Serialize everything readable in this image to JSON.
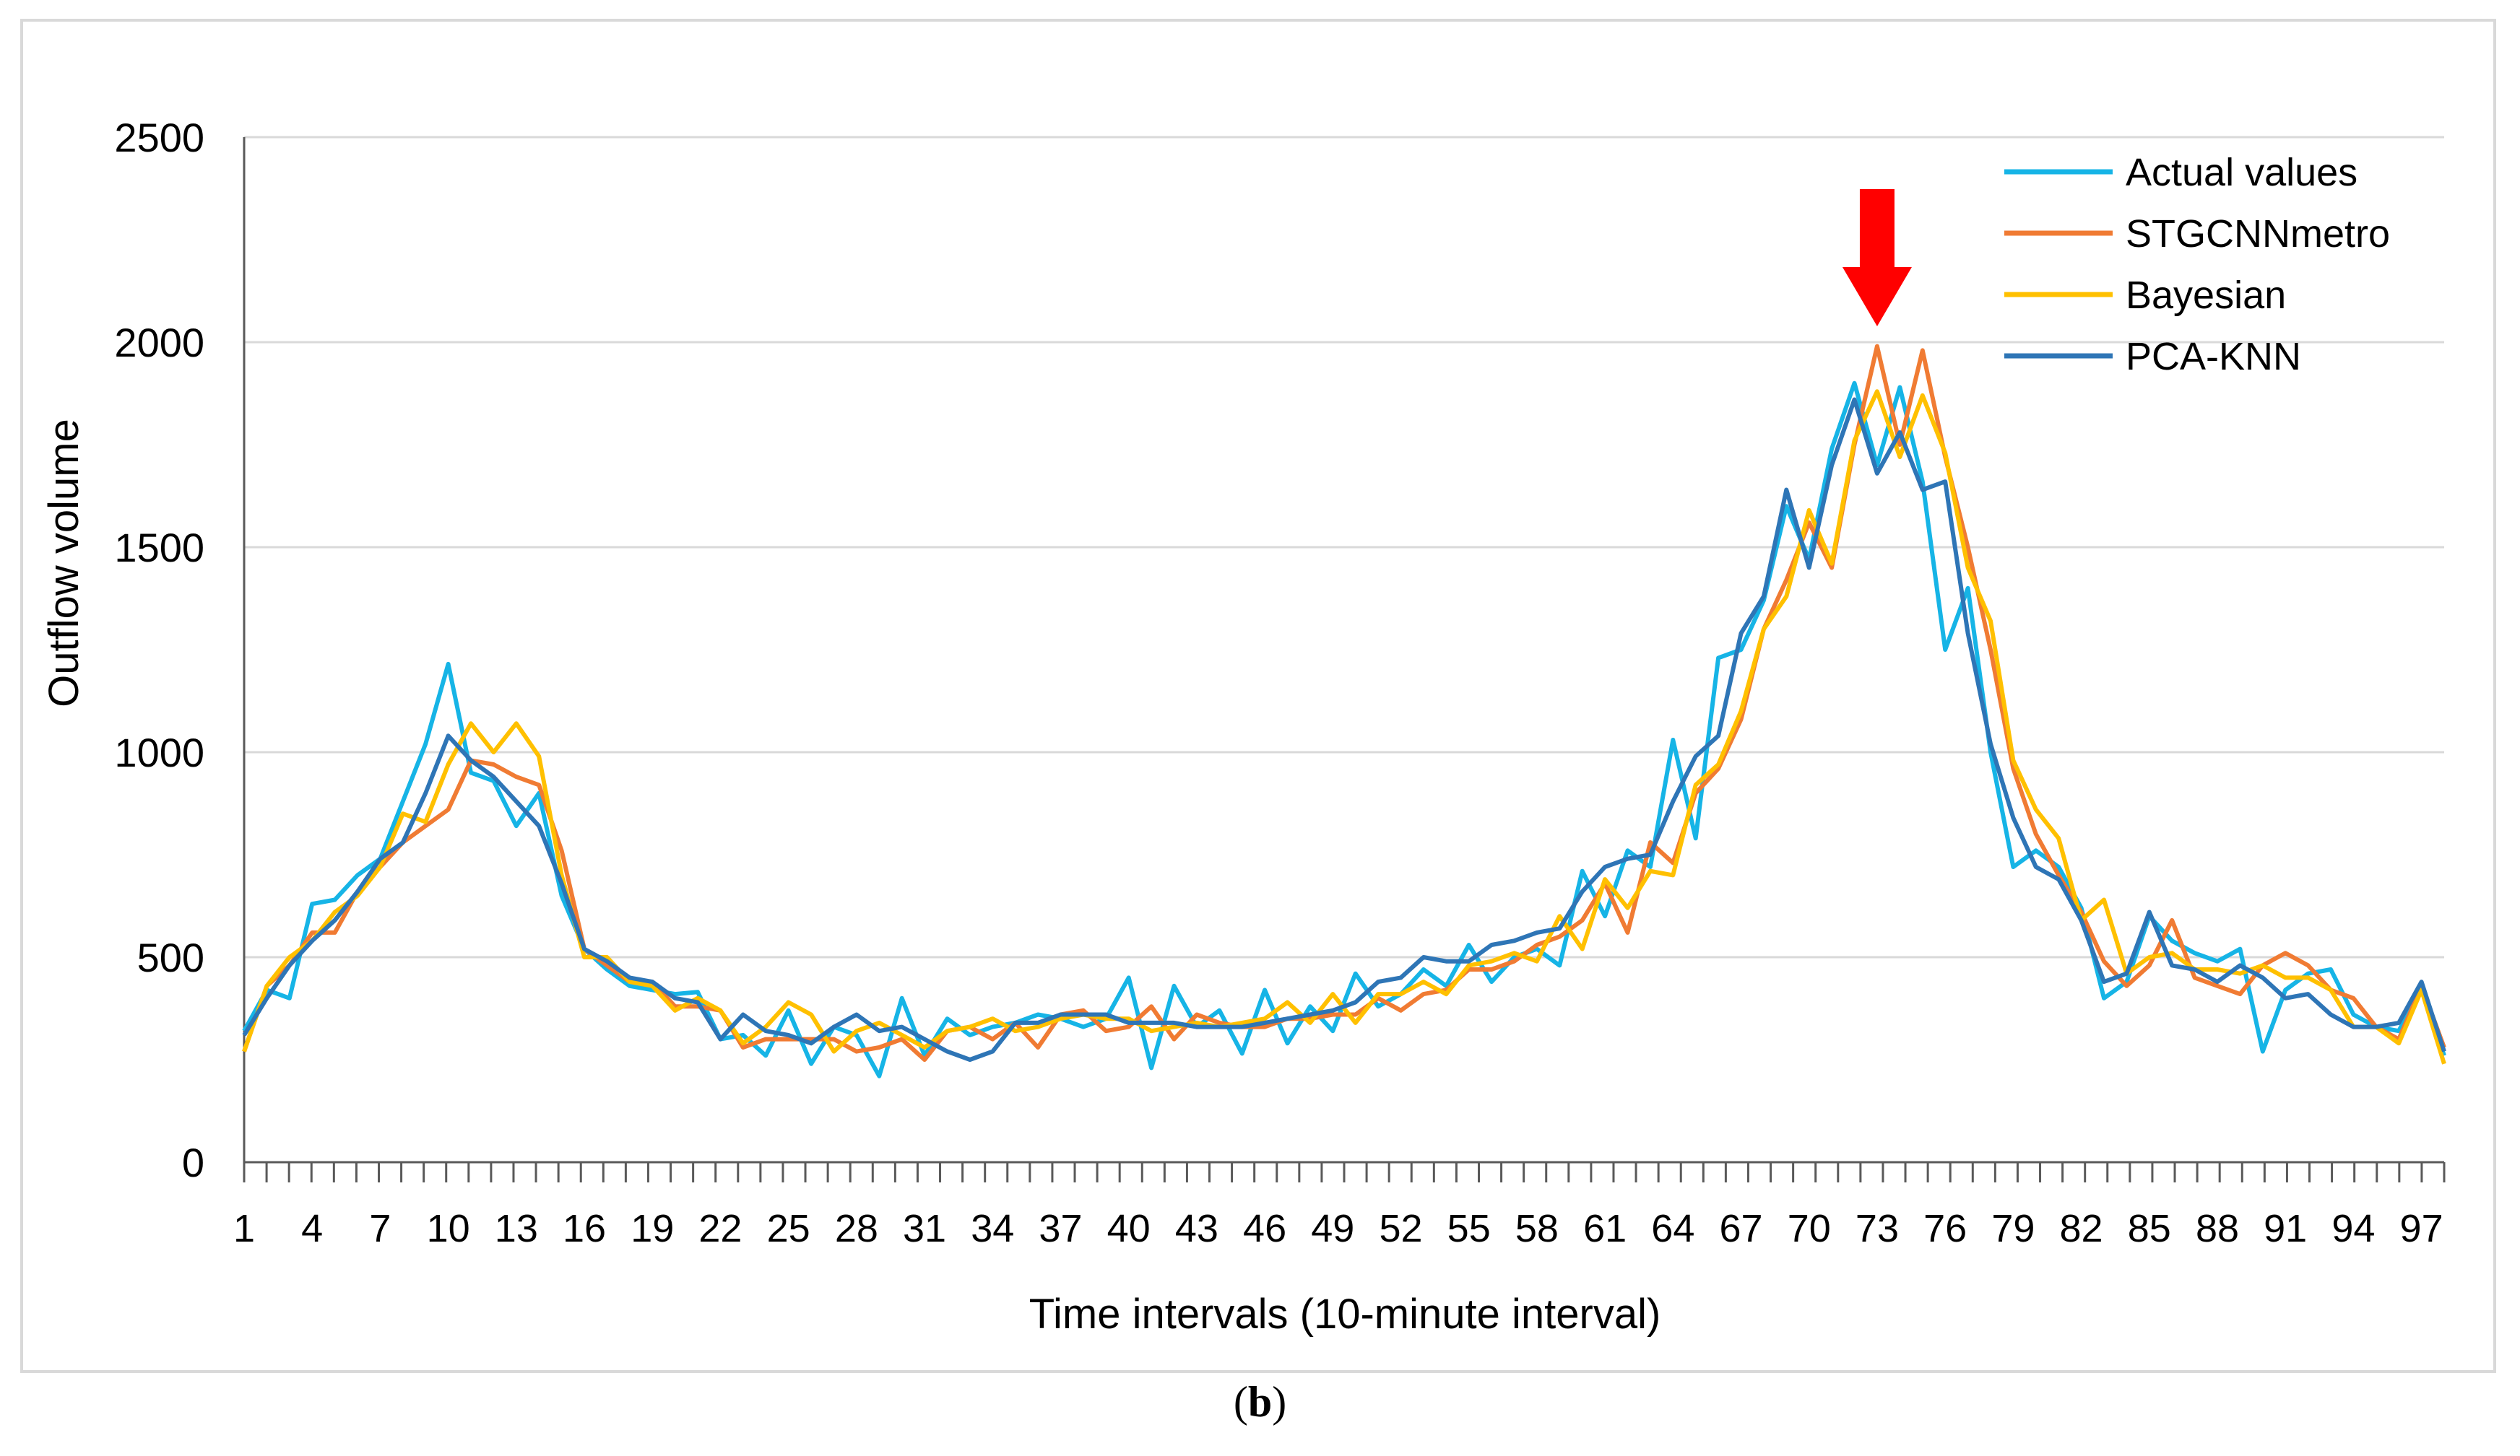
{
  "caption": {
    "open": "(",
    "letter": "b",
    "close": ")"
  },
  "chart_data": {
    "type": "line",
    "xlabel": "Time intervals (10-minute interval)",
    "ylabel": "Outflow volume",
    "ylim": [
      0,
      2500
    ],
    "yticks": [
      0,
      500,
      1000,
      1500,
      2000,
      2500
    ],
    "x": [
      1,
      2,
      3,
      4,
      5,
      6,
      7,
      8,
      9,
      10,
      11,
      12,
      13,
      14,
      15,
      16,
      17,
      18,
      19,
      20,
      21,
      22,
      23,
      24,
      25,
      26,
      27,
      28,
      29,
      30,
      31,
      32,
      33,
      34,
      35,
      36,
      37,
      38,
      39,
      40,
      41,
      42,
      43,
      44,
      45,
      46,
      47,
      48,
      49,
      50,
      51,
      52,
      53,
      54,
      55,
      56,
      57,
      58,
      59,
      60,
      61,
      62,
      63,
      64,
      65,
      66,
      67,
      68,
      69,
      70,
      71,
      72,
      73,
      74,
      75,
      76,
      77,
      78,
      79,
      80,
      81,
      82,
      83,
      84,
      85,
      86,
      87,
      88,
      89,
      90,
      91,
      92,
      93,
      94,
      95,
      96,
      97,
      98
    ],
    "xtick_labels": [
      "1",
      "4",
      "7",
      "10",
      "13",
      "16",
      "19",
      "22",
      "25",
      "28",
      "31",
      "34",
      "37",
      "40",
      "43",
      "46",
      "49",
      "52",
      "55",
      "58",
      "61",
      "64",
      "67",
      "70",
      "73",
      "76",
      "79",
      "82",
      "85",
      "88",
      "91",
      "94",
      "97"
    ],
    "grid": true,
    "legend_position": "top-right",
    "annotation": {
      "type": "arrow",
      "x": 73,
      "color": "#ff0000"
    },
    "series": [
      {
        "name": "Actual values",
        "color": "#16b4e6",
        "values": [
          320,
          420,
          400,
          630,
          640,
          700,
          740,
          880,
          1020,
          1215,
          950,
          930,
          820,
          900,
          650,
          520,
          470,
          430,
          420,
          410,
          415,
          300,
          310,
          260,
          370,
          240,
          330,
          310,
          210,
          400,
          260,
          350,
          310,
          330,
          340,
          360,
          350,
          330,
          350,
          450,
          230,
          430,
          330,
          370,
          265,
          420,
          290,
          380,
          320,
          460,
          380,
          410,
          470,
          430,
          530,
          440,
          500,
          520,
          480,
          710,
          600,
          760,
          720,
          1030,
          790,
          1230,
          1250,
          1370,
          1600,
          1470,
          1740,
          1900,
          1700,
          1890,
          1660,
          1250,
          1400,
          1000,
          720,
          760,
          720,
          620,
          400,
          440,
          600,
          540,
          510,
          490,
          520,
          270,
          420,
          460,
          470,
          360,
          330,
          320,
          430,
          260
        ]
      },
      {
        "name": "STGCNNmetro",
        "color": "#f07b33",
        "values": [
          270,
          430,
          480,
          560,
          560,
          660,
          720,
          780,
          820,
          860,
          980,
          970,
          940,
          920,
          760,
          520,
          480,
          440,
          440,
          380,
          380,
          370,
          280,
          300,
          300,
          300,
          300,
          270,
          280,
          300,
          250,
          320,
          330,
          300,
          340,
          280,
          360,
          370,
          320,
          330,
          380,
          300,
          360,
          340,
          330,
          330,
          350,
          350,
          360,
          360,
          400,
          370,
          410,
          420,
          470,
          470,
          490,
          530,
          550,
          590,
          680,
          560,
          780,
          730,
          900,
          960,
          1080,
          1300,
          1420,
          1560,
          1450,
          1750,
          1990,
          1750,
          1980,
          1720,
          1500,
          1250,
          960,
          800,
          700,
          610,
          490,
          430,
          480,
          590,
          450,
          430,
          410,
          480,
          510,
          480,
          420,
          400,
          330,
          300,
          430,
          280
        ]
      },
      {
        "name": "Bayesian",
        "color": "#ffc000",
        "values": [
          270,
          430,
          500,
          540,
          610,
          650,
          720,
          850,
          830,
          970,
          1070,
          1000,
          1070,
          990,
          700,
          500,
          500,
          440,
          430,
          370,
          400,
          370,
          290,
          330,
          390,
          360,
          270,
          320,
          340,
          310,
          280,
          320,
          330,
          350,
          320,
          330,
          350,
          360,
          350,
          350,
          320,
          330,
          340,
          330,
          340,
          350,
          390,
          340,
          410,
          340,
          410,
          410,
          440,
          410,
          480,
          490,
          510,
          490,
          600,
          520,
          690,
          620,
          710,
          700,
          920,
          970,
          1100,
          1300,
          1380,
          1590,
          1460,
          1760,
          1880,
          1720,
          1870,
          1730,
          1450,
          1320,
          980,
          860,
          790,
          590,
          640,
          460,
          500,
          510,
          470,
          470,
          460,
          480,
          450,
          450,
          420,
          330,
          330,
          290,
          420,
          240
        ]
      },
      {
        "name": "PCA-KNN",
        "color": "#2e75b6",
        "values": [
          310,
          400,
          480,
          540,
          590,
          660,
          740,
          780,
          900,
          1040,
          980,
          940,
          880,
          820,
          680,
          520,
          490,
          450,
          440,
          400,
          390,
          300,
          360,
          320,
          310,
          290,
          330,
          360,
          320,
          330,
          300,
          270,
          250,
          270,
          340,
          340,
          360,
          360,
          360,
          340,
          340,
          340,
          330,
          330,
          330,
          340,
          350,
          360,
          370,
          390,
          440,
          450,
          500,
          490,
          490,
          530,
          540,
          560,
          570,
          660,
          720,
          740,
          750,
          880,
          990,
          1040,
          1290,
          1380,
          1640,
          1450,
          1700,
          1860,
          1680,
          1780,
          1640,
          1660,
          1290,
          1020,
          840,
          720,
          690,
          590,
          440,
          460,
          610,
          480,
          470,
          440,
          480,
          450,
          400,
          410,
          360,
          330,
          330,
          340,
          440,
          270
        ]
      }
    ]
  }
}
